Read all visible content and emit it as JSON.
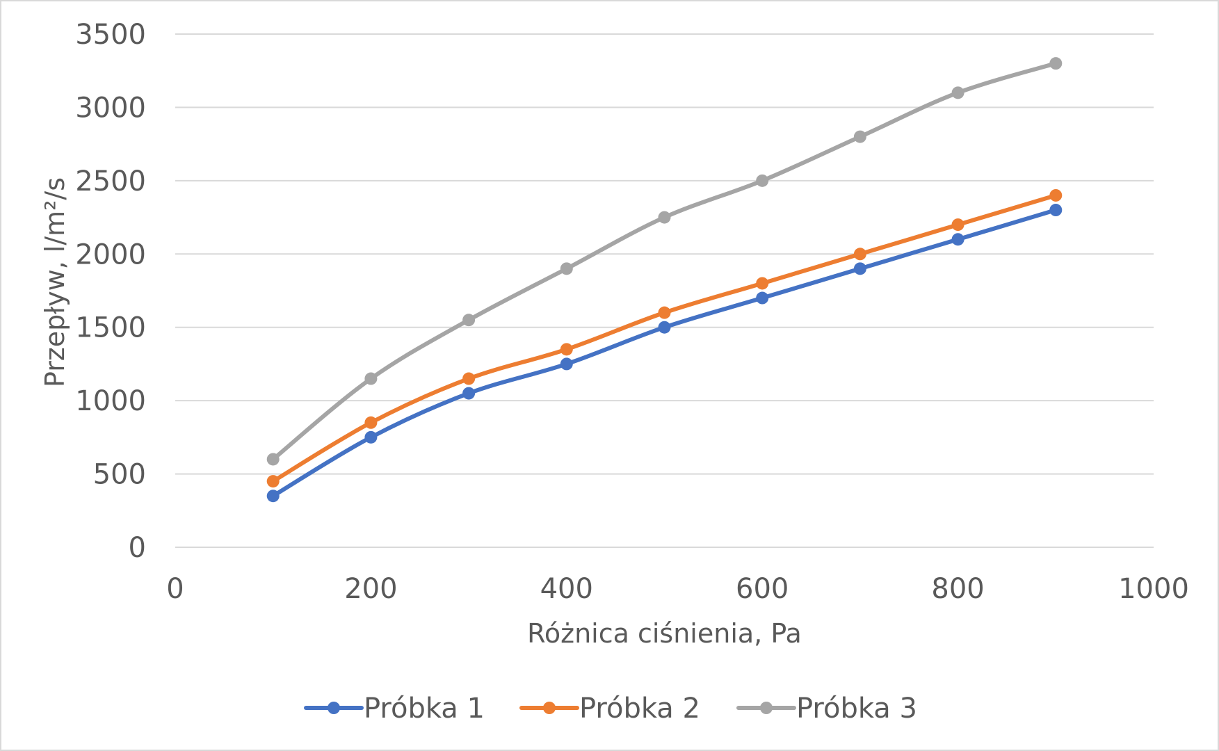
{
  "chart_data": {
    "type": "line",
    "title": "",
    "xlabel": "Różnica ciśnienia, Pa",
    "ylabel": "Przepływ, l/m²/s",
    "xlim": [
      0,
      1000
    ],
    "ylim": [
      0,
      3500
    ],
    "x_ticks": [
      "0",
      "200",
      "400",
      "600",
      "800",
      "1000"
    ],
    "y_ticks": [
      "0",
      "500",
      "1000",
      "1500",
      "2000",
      "2500",
      "3000",
      "3500"
    ],
    "grid": "horizontal",
    "legend_position": "bottom",
    "x": [
      100,
      200,
      300,
      400,
      500,
      600,
      700,
      800,
      900
    ],
    "series": [
      {
        "name": "Próbka 1",
        "color": "#4472c4",
        "values": [
          350,
          750,
          1050,
          1250,
          1500,
          1700,
          1900,
          2100,
          2300
        ]
      },
      {
        "name": "Próbka 2",
        "color": "#ed7d31",
        "values": [
          450,
          850,
          1150,
          1350,
          1600,
          1800,
          2000,
          2200,
          2400
        ]
      },
      {
        "name": "Próbka 3",
        "color": "#a5a5a5",
        "values": [
          600,
          1150,
          1550,
          1900,
          2250,
          2500,
          2800,
          3100,
          3300
        ]
      }
    ]
  }
}
